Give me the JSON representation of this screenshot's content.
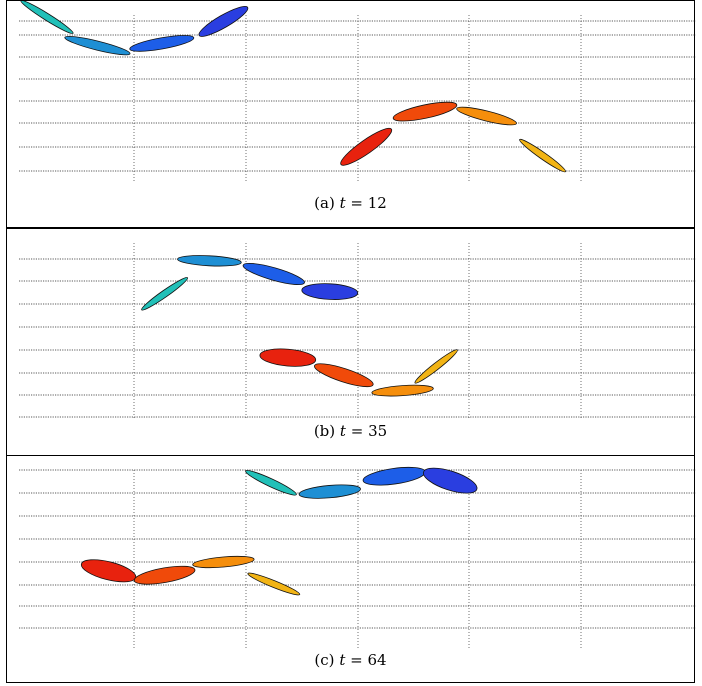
{
  "panels": [
    {
      "id": "a",
      "caption_prefix": "(a)",
      "caption_var": "t",
      "caption_eq": "= 12",
      "ellipses": [
        {
          "x": 0.5,
          "y": 3.5,
          "a": 0.55,
          "b": 0.06,
          "angle": -32,
          "color": "#21c0b8"
        },
        {
          "x": 1.4,
          "y": 2.85,
          "a": 0.6,
          "b": 0.08,
          "angle": -14,
          "color": "#1e8fd4"
        },
        {
          "x": 2.55,
          "y": 2.9,
          "a": 0.58,
          "b": 0.1,
          "angle": 10,
          "color": "#1d5ee8"
        },
        {
          "x": 3.65,
          "y": 3.4,
          "a": 0.5,
          "b": 0.11,
          "angle": 30,
          "color": "#2a3ee0"
        },
        {
          "x": 6.2,
          "y": 0.55,
          "a": 0.55,
          "b": 0.12,
          "angle": 35,
          "color": "#e8220e"
        },
        {
          "x": 7.25,
          "y": 1.35,
          "a": 0.58,
          "b": 0.12,
          "angle": 12,
          "color": "#f04a0a"
        },
        {
          "x": 8.35,
          "y": 1.25,
          "a": 0.55,
          "b": 0.09,
          "angle": -14,
          "color": "#f58e0c"
        },
        {
          "x": 9.35,
          "y": 0.35,
          "a": 0.5,
          "b": 0.06,
          "angle": -35,
          "color": "#f2b415"
        }
      ]
    },
    {
      "id": "b",
      "caption_prefix": "(b)",
      "caption_var": "t",
      "caption_eq": "= 35",
      "ellipses": [
        {
          "x": 2.6,
          "y": 2.8,
          "a": 0.5,
          "b": 0.06,
          "angle": 35,
          "color": "#21c0b8"
        },
        {
          "x": 3.4,
          "y": 3.55,
          "a": 0.57,
          "b": 0.09,
          "angle": -3,
          "color": "#1e8fd4"
        },
        {
          "x": 4.55,
          "y": 3.25,
          "a": 0.57,
          "b": 0.11,
          "angle": -16,
          "color": "#1d5ee8"
        },
        {
          "x": 5.55,
          "y": 2.85,
          "a": 0.5,
          "b": 0.14,
          "angle": -3,
          "color": "#2a3ee0"
        },
        {
          "x": 4.8,
          "y": 1.35,
          "a": 0.5,
          "b": 0.15,
          "angle": -5,
          "color": "#e8220e"
        },
        {
          "x": 5.8,
          "y": 0.95,
          "a": 0.55,
          "b": 0.12,
          "angle": -18,
          "color": "#f04a0a"
        },
        {
          "x": 6.85,
          "y": 0.6,
          "a": 0.55,
          "b": 0.09,
          "angle": 4,
          "color": "#f58e0c"
        },
        {
          "x": 7.45,
          "y": 1.15,
          "a": 0.48,
          "b": 0.06,
          "angle": 38,
          "color": "#f2b415"
        }
      ]
    },
    {
      "id": "c",
      "caption_prefix": "(c)",
      "caption_var": "t",
      "caption_eq": "= 64",
      "ellipses": [
        {
          "x": 4.5,
          "y": 3.3,
          "a": 0.5,
          "b": 0.07,
          "angle": -25,
          "color": "#21c0b8"
        },
        {
          "x": 5.55,
          "y": 3.1,
          "a": 0.55,
          "b": 0.11,
          "angle": 5,
          "color": "#1e8fd4"
        },
        {
          "x": 6.7,
          "y": 3.45,
          "a": 0.56,
          "b": 0.14,
          "angle": 8,
          "color": "#1d5ee8"
        },
        {
          "x": 7.7,
          "y": 3.35,
          "a": 0.5,
          "b": 0.17,
          "angle": -18,
          "color": "#2a3ee0"
        },
        {
          "x": 1.6,
          "y": 1.3,
          "a": 0.5,
          "b": 0.16,
          "angle": -14,
          "color": "#e8220e"
        },
        {
          "x": 2.6,
          "y": 1.2,
          "a": 0.55,
          "b": 0.13,
          "angle": 10,
          "color": "#f04a0a"
        },
        {
          "x": 3.65,
          "y": 1.5,
          "a": 0.55,
          "b": 0.09,
          "angle": 5,
          "color": "#f58e0c"
        },
        {
          "x": 4.55,
          "y": 1.0,
          "a": 0.5,
          "b": 0.06,
          "angle": -22,
          "color": "#f2b415"
        }
      ]
    }
  ]
}
